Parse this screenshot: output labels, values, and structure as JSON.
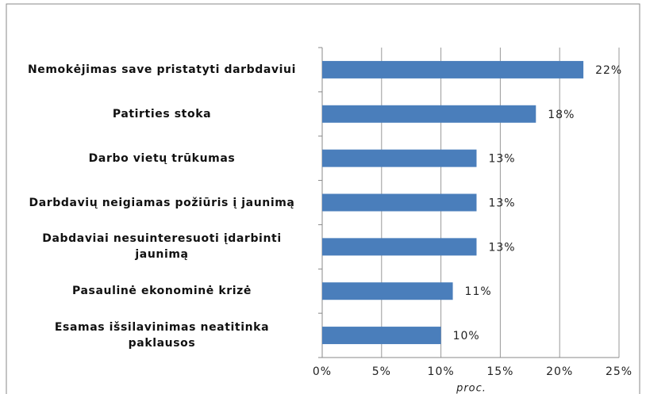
{
  "chart_data": {
    "type": "bar",
    "orientation": "horizontal",
    "categories": [
      "Nemokėjimas save pristatyti darbdaviui",
      "Patirties stoka",
      "Darbo vietų trūkumas",
      "Darbdavių neigiamas požiūris į jaunimą",
      "Dabdaviai nesuinteresuoti įdarbinti jaunimą",
      "Pasaulinė ekonominė krizė",
      "Esamas išsilavinimas neatitinka paklausos"
    ],
    "values": [
      22,
      18,
      13,
      13,
      13,
      11,
      10
    ],
    "value_labels": [
      "22%",
      "18%",
      "13%",
      "13%",
      "13%",
      "11%",
      "10%"
    ],
    "color": "#4a7ebb",
    "xlim": [
      0,
      25
    ],
    "xticks": [
      {
        "value": 0,
        "label": "0%"
      },
      {
        "value": 5,
        "label": "5%"
      },
      {
        "value": 10,
        "label": "10%"
      },
      {
        "value": 15,
        "label": "15%"
      },
      {
        "value": 20,
        "label": "20%"
      },
      {
        "value": 25,
        "label": "25%"
      }
    ],
    "x_label": "proc.",
    "grid": true
  }
}
